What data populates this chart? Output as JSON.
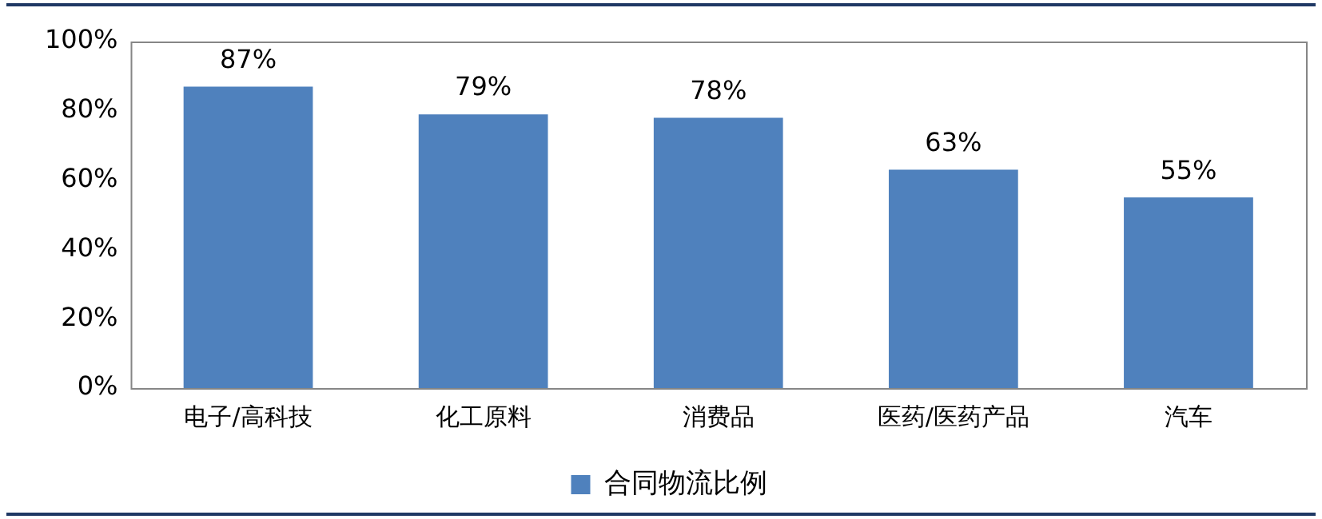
{
  "chart_data": {
    "type": "bar",
    "categories": [
      "电子/高科技",
      "化工原料",
      "消费品",
      "医药/医药产品",
      "汽车"
    ],
    "series": [
      {
        "name": "合同物流比例",
        "color": "#4f81bd",
        "values": [
          87,
          79,
          78,
          63,
          55
        ],
        "value_labels": [
          "87%",
          "79%",
          "78%",
          "63%",
          "55%"
        ]
      }
    ],
    "ylim": [
      0,
      100
    ],
    "yticks": [
      {
        "value": 0,
        "label": "0%"
      },
      {
        "value": 20,
        "label": "20%"
      },
      {
        "value": 40,
        "label": "40%"
      },
      {
        "value": 60,
        "label": "60%"
      },
      {
        "value": 80,
        "label": "80%"
      },
      {
        "value": 100,
        "label": "100%"
      }
    ],
    "grid": false,
    "legend": "bottom"
  }
}
